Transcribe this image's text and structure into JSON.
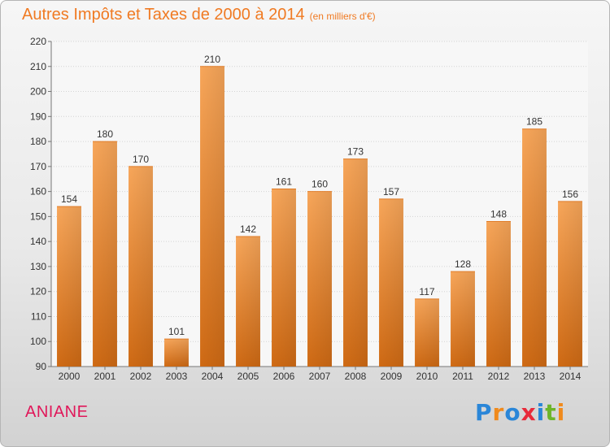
{
  "title": "Autres Impôts et Taxes de 2000 à 2014",
  "subtitle": "(en milliers d'€)",
  "commune": "ANIANE",
  "logo": {
    "text": "Proxiti"
  },
  "colors": {
    "bar_light": "#f7a65a",
    "bar_dark": "#cf6a14",
    "title": "#f07a22",
    "commune": "#e0185a"
  },
  "chart_data": {
    "type": "bar",
    "title": "Autres Impôts et Taxes de 2000 à 2014",
    "subtitle": "(en milliers d'€)",
    "categories": [
      "2000",
      "2001",
      "2002",
      "2003",
      "2004",
      "2005",
      "2006",
      "2007",
      "2008",
      "2009",
      "2010",
      "2011",
      "2012",
      "2013",
      "2014"
    ],
    "values": [
      154,
      180,
      170,
      101,
      210,
      142,
      161,
      160,
      173,
      157,
      117,
      128,
      148,
      185,
      156
    ],
    "ylim": [
      90,
      220
    ],
    "yticks": [
      90,
      100,
      110,
      120,
      130,
      140,
      150,
      160,
      170,
      180,
      190,
      200,
      210,
      220
    ],
    "grid": true,
    "data_labels": true,
    "legend": "none"
  }
}
